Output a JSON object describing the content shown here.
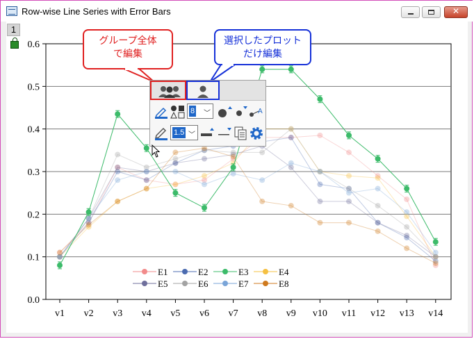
{
  "window": {
    "title": "Row-wise Line Series with Error Bars",
    "buttons": {
      "minimize": "minimize",
      "maximize": "maximize",
      "close": "✕"
    }
  },
  "layer_tab": "1",
  "callouts": {
    "group": "グループ全体\nで編集",
    "single": "選択したプロット\nだけ編集"
  },
  "mini_toolbar": {
    "tabs": {
      "group_icon": "people-group-icon",
      "single_icon": "person-icon"
    },
    "symbol_size": "8",
    "line_width": "1.5",
    "icons": [
      "pencil-edit-icon",
      "symbol-shape-icon",
      "symbol-size-icon",
      "symbol-gap-icon",
      "connect-icon",
      "line-color-icon",
      "line-width-inc-icon",
      "line-width-dec-icon",
      "copy-format-icon",
      "settings-gear-icon"
    ]
  },
  "chart_data": {
    "type": "line",
    "categories": [
      "v1",
      "v2",
      "v3",
      "v4",
      "v5",
      "v6",
      "v7",
      "v8",
      "v9",
      "v10",
      "v11",
      "v12",
      "v13",
      "v14"
    ],
    "ylim": [
      0,
      0.6
    ],
    "yticks": [
      "0.0",
      "0.1",
      "0.2",
      "0.3",
      "0.4",
      "0.5",
      "0.6"
    ],
    "grid": true,
    "legend_position": "bottom-left-inside",
    "series": [
      {
        "name": "E1",
        "color": "#f28b8b",
        "values": [
          0.11,
          0.18,
          0.31,
          0.28,
          0.27,
          0.28,
          0.33,
          0.38,
          0.38,
          0.385,
          0.345,
          0.29,
          0.235,
          0.08
        ]
      },
      {
        "name": "E2",
        "color": "#4b6bb0",
        "values": [
          0.1,
          0.18,
          0.3,
          0.28,
          0.32,
          0.35,
          0.36,
          0.37,
          0.38,
          0.27,
          0.26,
          0.18,
          0.145,
          0.09
        ]
      },
      {
        "name": "E3",
        "color": "#3cbb6a",
        "highlight": true,
        "values": [
          0.08,
          0.205,
          0.435,
          0.355,
          0.25,
          0.215,
          0.31,
          0.54,
          0.54,
          0.47,
          0.385,
          0.33,
          0.26,
          0.135
        ]
      },
      {
        "name": "E4",
        "color": "#f5c042",
        "values": [
          0.1,
          0.17,
          0.23,
          0.26,
          0.27,
          0.29,
          0.32,
          0.4,
          0.4,
          0.3,
          0.29,
          0.285,
          0.195,
          0.1
        ]
      },
      {
        "name": "E5",
        "color": "#6f6f9c",
        "values": [
          0.1,
          0.19,
          0.31,
          0.3,
          0.32,
          0.33,
          0.34,
          0.36,
          0.31,
          0.23,
          0.23,
          0.18,
          0.15,
          0.1
        ]
      },
      {
        "name": "E6",
        "color": "#a3a3a3",
        "values": [
          0.1,
          0.19,
          0.34,
          0.31,
          0.33,
          0.35,
          0.345,
          0.345,
          0.4,
          0.3,
          0.26,
          0.22,
          0.17,
          0.1
        ]
      },
      {
        "name": "E7",
        "color": "#7aa5d8",
        "values": [
          0.1,
          0.19,
          0.28,
          0.3,
          0.3,
          0.27,
          0.295,
          0.28,
          0.32,
          0.3,
          0.25,
          0.26,
          0.205,
          0.11
        ]
      },
      {
        "name": "E8",
        "color": "#cf7a1f",
        "values": [
          0.11,
          0.175,
          0.23,
          0.26,
          0.345,
          0.355,
          0.335,
          0.23,
          0.22,
          0.18,
          0.18,
          0.16,
          0.12,
          0.085
        ]
      }
    ]
  }
}
